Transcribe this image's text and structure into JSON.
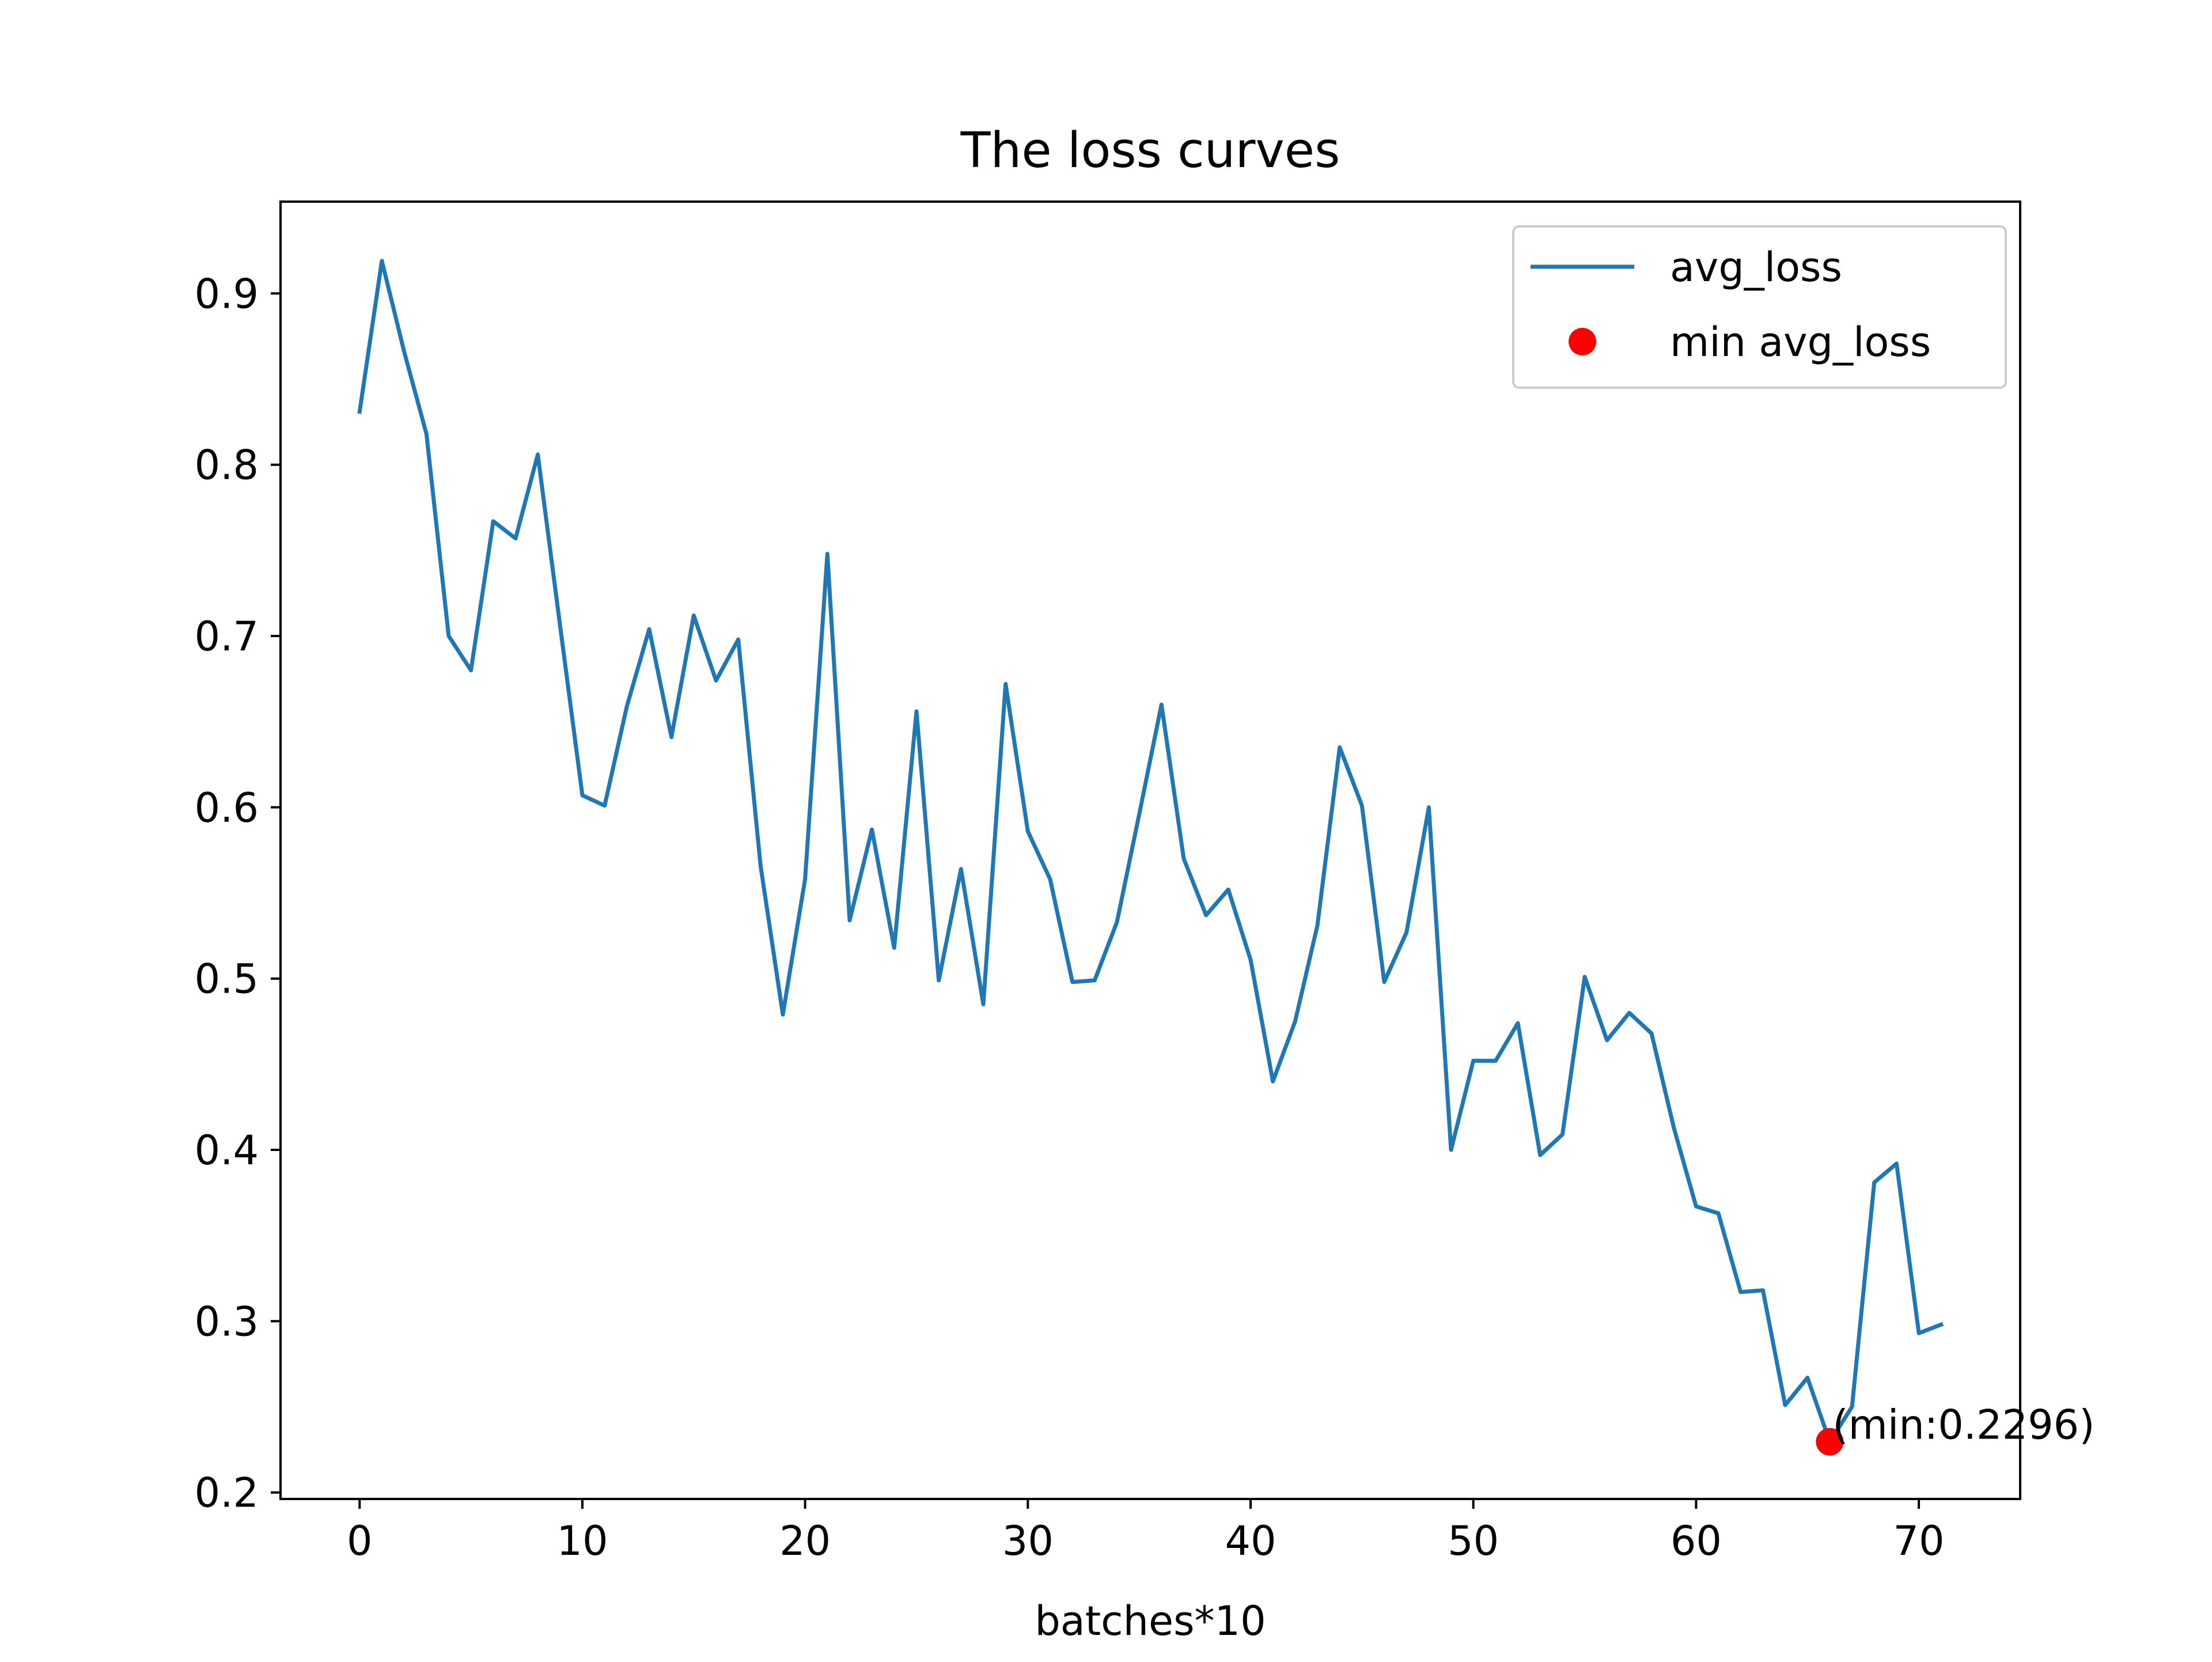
{
  "chart_data": {
    "type": "line",
    "title": "The loss curves",
    "xlabel": "batches*10",
    "ylabel": "",
    "xlim": [
      -3.55,
      74.55
    ],
    "ylim": [
      0.1962,
      0.9536
    ],
    "xticks": [
      0,
      10,
      20,
      30,
      40,
      50,
      60,
      70
    ],
    "yticks": [
      0.2,
      0.3,
      0.4,
      0.5,
      0.6,
      0.7,
      0.8,
      0.9
    ],
    "xtick_labels": [
      "0",
      "10",
      "20",
      "30",
      "40",
      "50",
      "60",
      "70"
    ],
    "ytick_labels": [
      "0.2",
      "0.3",
      "0.4",
      "0.5",
      "0.6",
      "0.7",
      "0.8",
      "0.9"
    ],
    "grid": false,
    "legend_position": "top-right",
    "series": [
      {
        "name": "avg_loss",
        "kind": "line",
        "color": "#1f77b4",
        "x": [
          0,
          1,
          2,
          3,
          4,
          5,
          6,
          7,
          8,
          9,
          10,
          11,
          12,
          13,
          14,
          15,
          16,
          17,
          18,
          19,
          20,
          21,
          22,
          23,
          24,
          25,
          26,
          27,
          28,
          29,
          30,
          31,
          32,
          33,
          34,
          35,
          36,
          37,
          38,
          39,
          40,
          41,
          42,
          43,
          44,
          45,
          46,
          47,
          48,
          49,
          50,
          51,
          52,
          53,
          54,
          55,
          56,
          57,
          58,
          59,
          60,
          61,
          62,
          63,
          64,
          65,
          66,
          67,
          68,
          69,
          70,
          71
        ],
        "values": [
          0.831,
          0.919,
          0.866,
          0.818,
          0.7,
          0.68,
          0.767,
          0.757,
          0.806,
          0.706,
          0.607,
          0.601,
          0.659,
          0.704,
          0.641,
          0.712,
          0.674,
          0.698,
          0.566,
          0.479,
          0.558,
          0.748,
          0.534,
          0.587,
          0.518,
          0.656,
          0.499,
          0.564,
          0.485,
          0.672,
          0.586,
          0.558,
          0.498,
          0.499,
          0.533,
          0.596,
          0.66,
          0.57,
          0.537,
          0.552,
          0.511,
          0.44,
          0.475,
          0.531,
          0.635,
          0.601,
          0.498,
          0.527,
          0.6,
          0.4,
          0.452,
          0.452,
          0.474,
          0.397,
          0.409,
          0.501,
          0.464,
          0.48,
          0.468,
          0.413,
          0.367,
          0.363,
          0.317,
          0.318,
          0.251,
          0.267,
          0.2296,
          0.25,
          0.381,
          0.392,
          0.293,
          0.298
        ]
      },
      {
        "name": "min avg_loss",
        "kind": "scatter",
        "color": "#ff0000",
        "x": [
          66
        ],
        "values": [
          0.2296
        ]
      }
    ],
    "annotations": [
      {
        "text": "(min:0.2296)",
        "x": 66,
        "y": 0.2296
      }
    ]
  }
}
